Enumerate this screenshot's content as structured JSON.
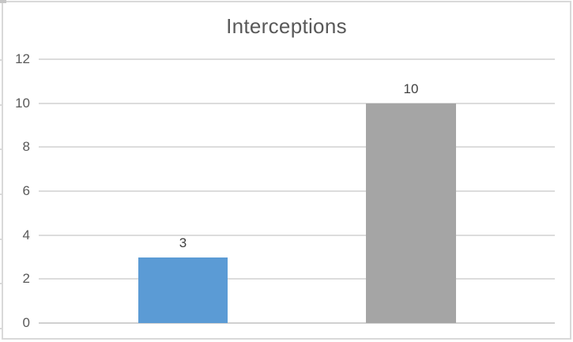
{
  "window": {
    "background": "#FFFFFF",
    "border_color": "#D9D9D9"
  },
  "chart_data": {
    "type": "bar",
    "title": "Interceptions",
    "values": [
      3,
      10
    ],
    "data_labels": [
      "3",
      "10"
    ],
    "bar_colors": [
      "#5B9BD5",
      "#A5A5A5"
    ],
    "xlabel": "",
    "ylabel": "",
    "ylim": [
      0,
      12
    ],
    "yticks": [
      0,
      2,
      4,
      6,
      8,
      10,
      12
    ],
    "grid": true,
    "legend": false,
    "category_labels_visible": false,
    "gridline_color": "#DCDCDC",
    "axis_line_color": "#D0D0D0",
    "title_color": "#595959",
    "tick_label_color": "#595959",
    "data_label_color": "#404040"
  }
}
